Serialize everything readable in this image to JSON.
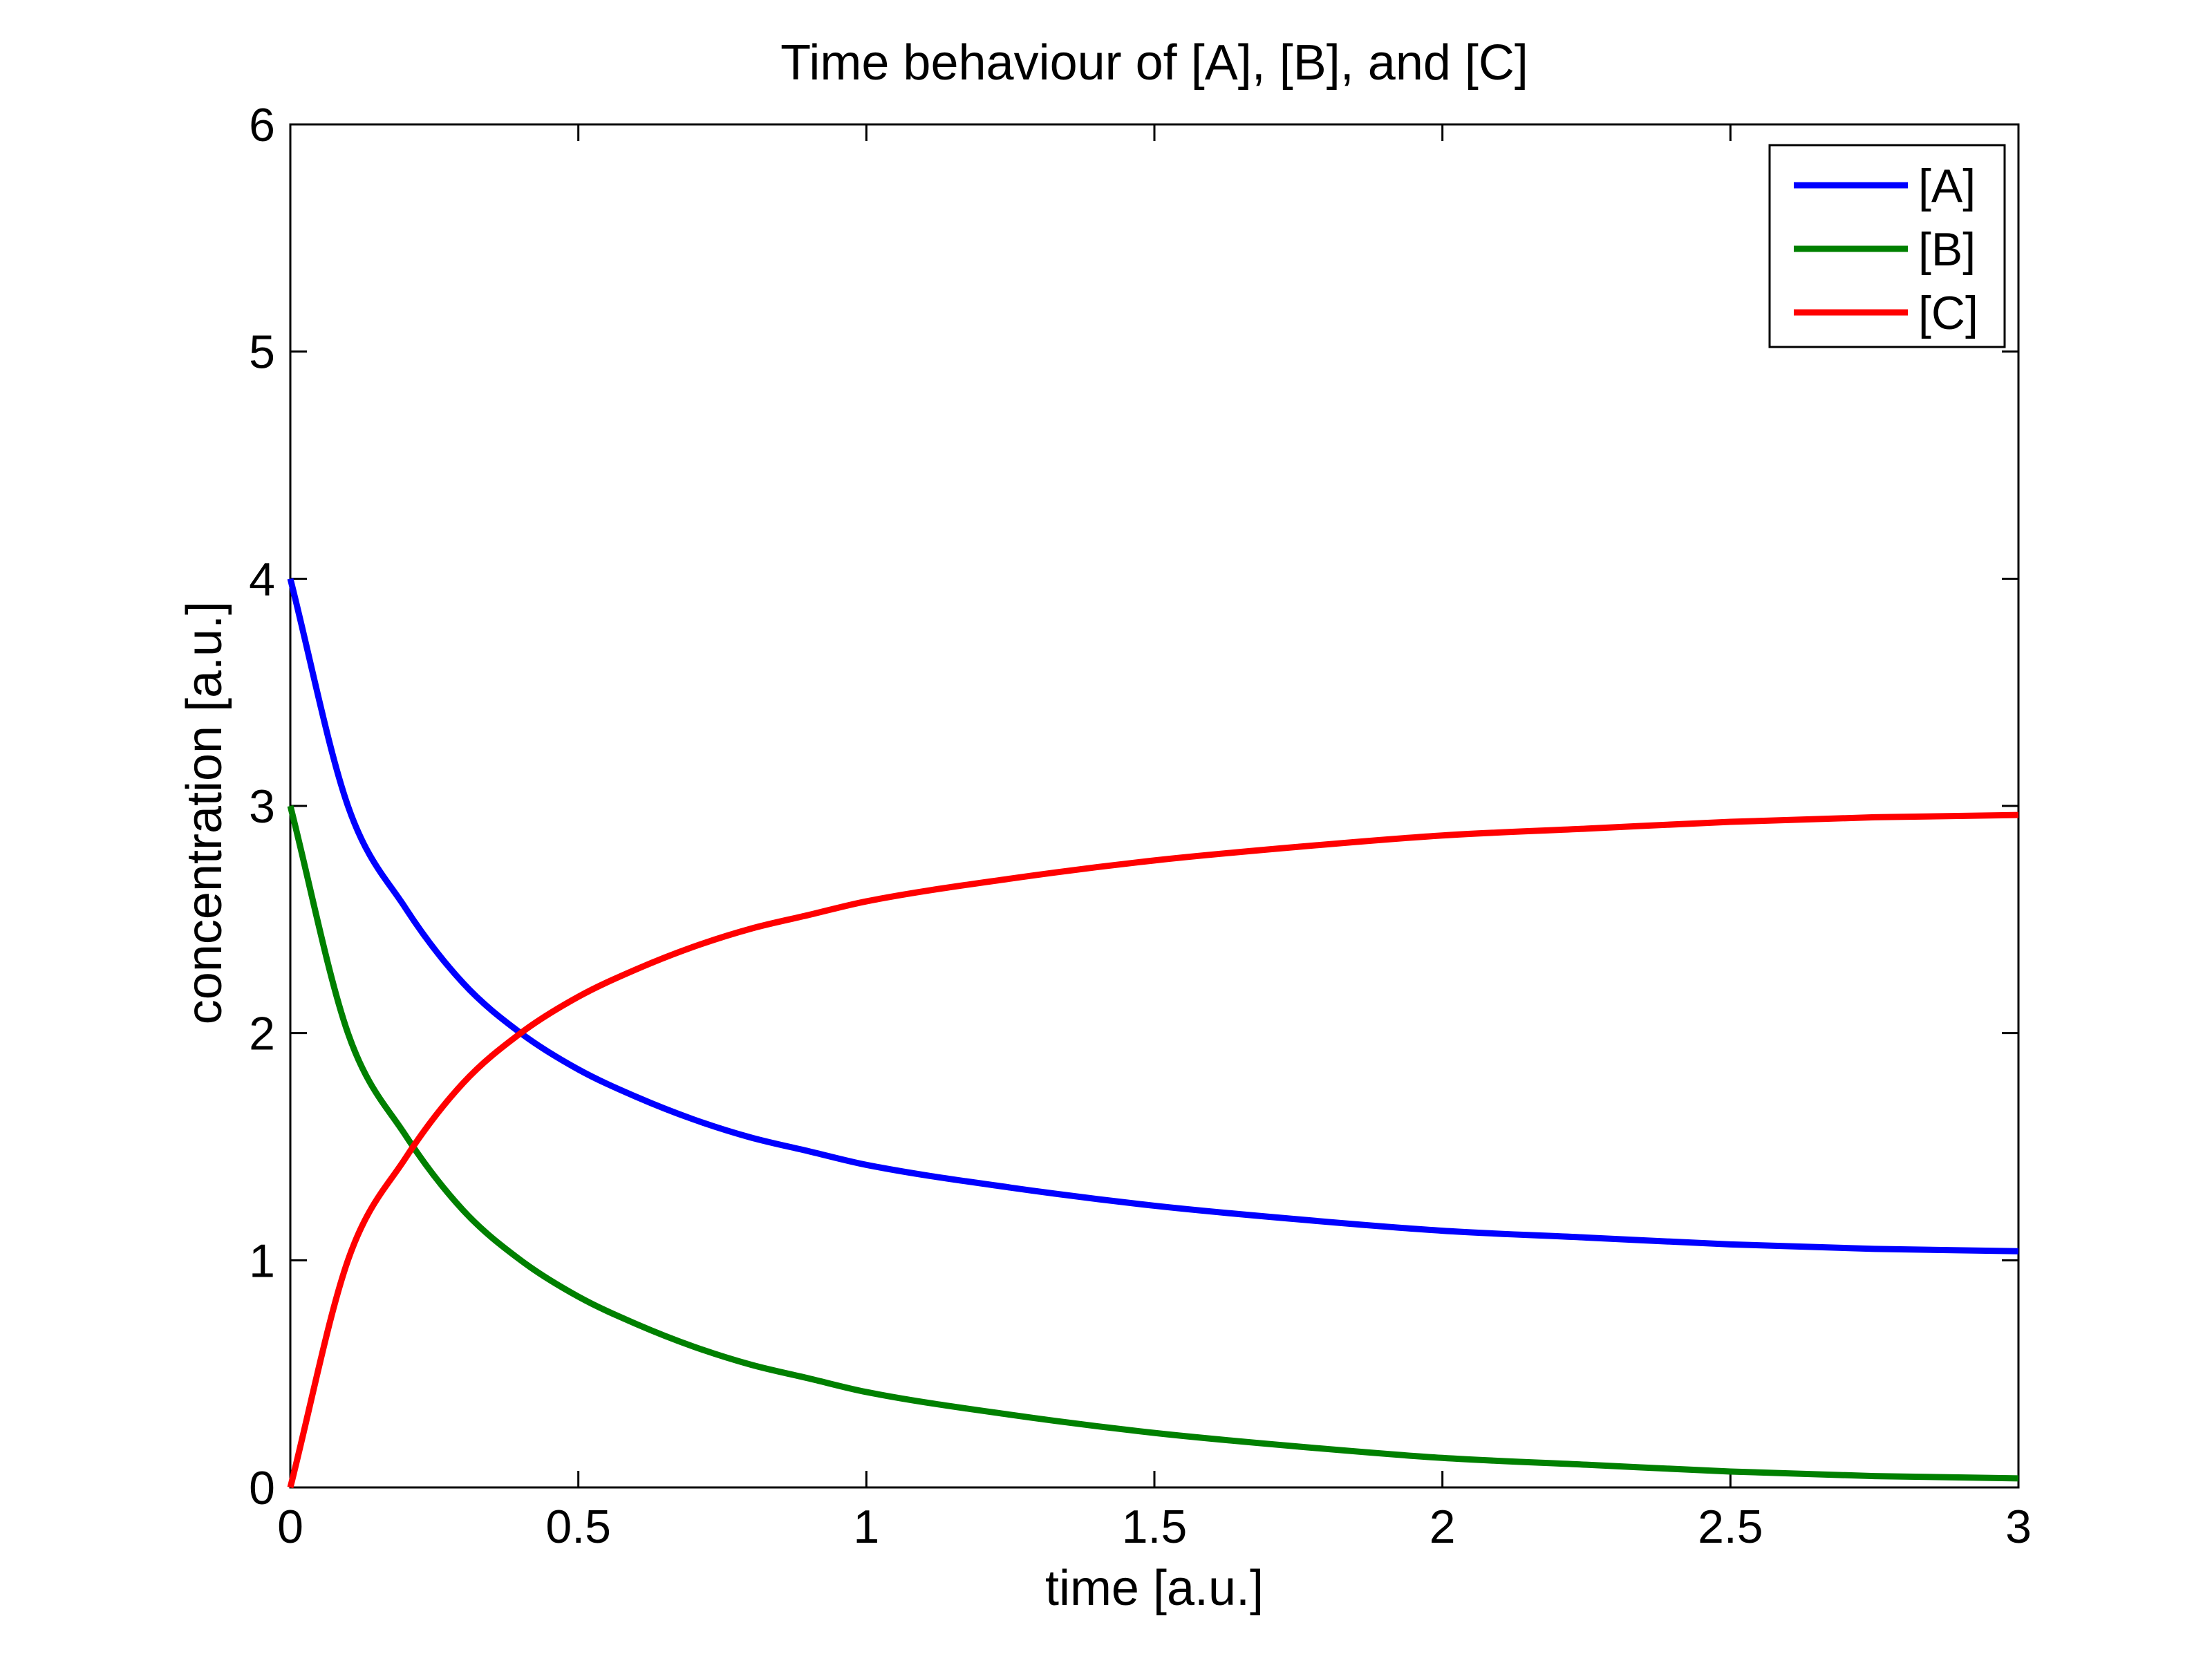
{
  "chart_data": {
    "type": "line",
    "title": "Time behaviour of [A], [B], and [C]",
    "xlabel": "time [a.u.]",
    "ylabel": "concentration [a.u.]",
    "xlim": [
      0,
      3
    ],
    "ylim": [
      0,
      6
    ],
    "xticks": [
      0,
      0.5,
      1,
      1.5,
      2,
      2.5,
      3
    ],
    "xtick_labels": [
      "0",
      "0.5",
      "1",
      "1.5",
      "2",
      "2.5",
      "3"
    ],
    "yticks": [
      0,
      1,
      2,
      3,
      4,
      5,
      6
    ],
    "ytick_labels": [
      "0",
      "1",
      "2",
      "3",
      "4",
      "5",
      "6"
    ],
    "grid": false,
    "legend_position": "top-right",
    "x": [
      0,
      0.1,
      0.2,
      0.3,
      0.4,
      0.5,
      0.6,
      0.7,
      0.8,
      0.9,
      1.0,
      1.25,
      1.5,
      1.75,
      2.0,
      2.25,
      2.5,
      2.75,
      3.0
    ],
    "series": [
      {
        "name": "[A]",
        "color": "#0000ff",
        "values": [
          4.0,
          3.0,
          2.55,
          2.22,
          2.0,
          1.84,
          1.72,
          1.62,
          1.54,
          1.48,
          1.42,
          1.32,
          1.24,
          1.18,
          1.13,
          1.1,
          1.07,
          1.05,
          1.04
        ]
      },
      {
        "name": "[B]",
        "color": "#008000",
        "values": [
          3.0,
          2.0,
          1.55,
          1.22,
          1.0,
          0.84,
          0.72,
          0.62,
          0.54,
          0.48,
          0.42,
          0.32,
          0.24,
          0.18,
          0.13,
          0.1,
          0.07,
          0.05,
          0.04
        ]
      },
      {
        "name": "[C]",
        "color": "#ff0000",
        "values": [
          0.0,
          1.0,
          1.45,
          1.78,
          2.0,
          2.16,
          2.28,
          2.38,
          2.46,
          2.52,
          2.58,
          2.68,
          2.76,
          2.82,
          2.87,
          2.9,
          2.93,
          2.95,
          2.96
        ]
      }
    ]
  }
}
